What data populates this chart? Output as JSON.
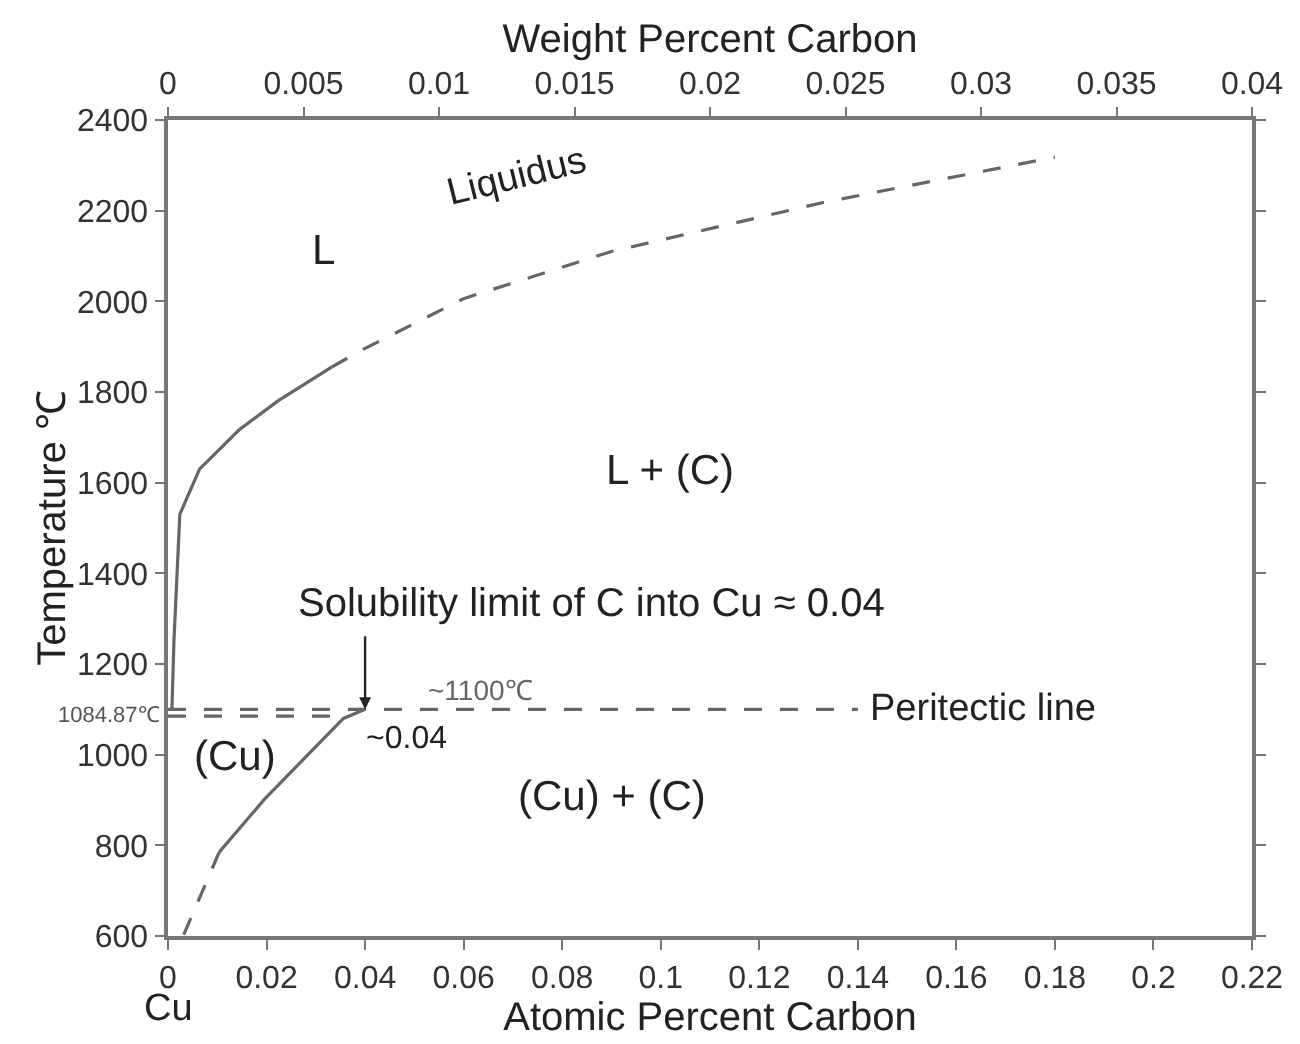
{
  "chart_data": {
    "type": "line",
    "xlabel": "Atomic Percent Carbon",
    "ylabel": "Temperature ℃",
    "x2label": "Weight Percent Carbon",
    "xlim": [
      0,
      0.22
    ],
    "xticks": [
      0,
      0.02,
      0.04,
      0.06,
      0.08,
      0.1,
      0.12,
      0.14,
      0.16,
      0.18,
      0.2,
      0.22
    ],
    "x2lim": [
      0,
      0.04
    ],
    "x2ticks": [
      0,
      0.005,
      0.01,
      0.015,
      0.02,
      0.025,
      0.03,
      0.035,
      0.04
    ],
    "ylim": [
      600,
      2400
    ],
    "yticks": [
      600,
      800,
      1000,
      1200,
      1400,
      1600,
      1800,
      2000,
      2200,
      2400
    ],
    "marker": "none",
    "series": [
      {
        "color": "#666666",
        "line_style": "solid",
        "x": [
          0.0008,
          0.0012,
          0.0024,
          0.0064,
          0.0144,
          0.0224,
          0.0332
        ],
        "values": [
          1100,
          1250,
          1530,
          1630,
          1716,
          1781,
          1855
        ]
      },
      {
        "color": "#666666",
        "line_style": "dashed",
        "x": [
          0.0332,
          0.0396,
          0.06,
          0.09,
          0.133,
          0.18
        ],
        "values": [
          1855,
          1894,
          2006,
          2110,
          2218,
          2318
        ]
      },
      {
        "color": "#666666",
        "line_style": "dashed",
        "x": [
          0.0032,
          0.0104
        ],
        "values": [
          603,
          785
        ]
      },
      {
        "color": "#666666",
        "line_style": "solid",
        "x": [
          0.0104,
          0.0196,
          0.0356,
          0.04
        ],
        "values": [
          785,
          902,
          1080,
          1100
        ]
      },
      {
        "color": "#666666",
        "line_style": "dashed",
        "x": [
          0,
          0.14
        ],
        "values": [
          1100,
          1100
        ]
      },
      {
        "color": "#666666",
        "line_style": "dashed",
        "x": [
          0,
          0.036
        ],
        "values": [
          1084.87,
          1084.87
        ]
      }
    ],
    "annotations": [
      {
        "text": "1084.87℃",
        "x": 0,
        "y": 1084.87
      },
      {
        "text": "Peritectic line",
        "x": 0.14,
        "y": 1100
      },
      {
        "text": "Solubility limit of C into Cu ≈ 0.04",
        "x": 0.04,
        "y": 1100
      },
      {
        "text": "~1100℃",
        "x": 0.052,
        "y": 1100
      },
      {
        "text": "~0.04",
        "x": 0.04,
        "y": 1080
      },
      "Liquidus",
      "L",
      "L + (C)",
      "(Cu)",
      "(Cu) + (C)",
      "Cu"
    ]
  }
}
